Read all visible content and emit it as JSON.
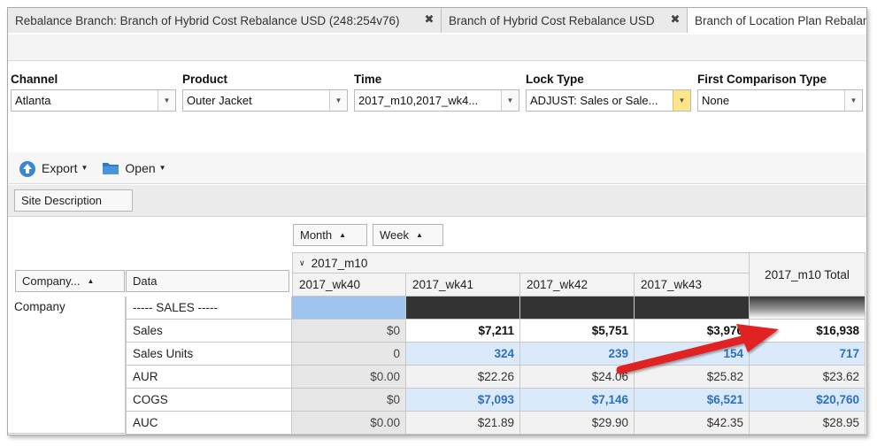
{
  "tabs": [
    {
      "label": "Rebalance Branch: Branch of Hybrid Cost Rebalance USD (248:254v76)",
      "close": "✖"
    },
    {
      "label": "Branch of Hybrid Cost Rebalance USD",
      "close": "✖"
    },
    {
      "label": "Branch of Location Plan Rebalance"
    }
  ],
  "filters": {
    "channel": {
      "label": "Channel",
      "value": "Atlanta"
    },
    "product": {
      "label": "Product",
      "value": "Outer Jacket"
    },
    "time": {
      "label": "Time",
      "value": "2017_m10,2017_wk4..."
    },
    "lock_type": {
      "label": "Lock Type",
      "value": "ADJUST: Sales or Sale..."
    },
    "first_comparison": {
      "label": "First Comparison Type",
      "value": "None"
    }
  },
  "actions": {
    "export": "Export",
    "open": "Open"
  },
  "grouping": {
    "site_description": "Site Description",
    "month": "Month",
    "week": "Week"
  },
  "grid": {
    "company_header": "Company...",
    "data_header": "Data",
    "month_group": "2017_m10",
    "columns": [
      "2017_wk40",
      "2017_wk41",
      "2017_wk42",
      "2017_wk43"
    ],
    "total_header": "2017_m10 Total",
    "company_value": "Company",
    "rows": [
      {
        "label": "----- SALES -----",
        "values": [
          "",
          "",
          "",
          "",
          ""
        ]
      },
      {
        "label": "Sales",
        "values": [
          "$0",
          "$7,211",
          "$5,751",
          "$3,976",
          "$16,938"
        ]
      },
      {
        "label": "Sales Units",
        "values": [
          "0",
          "324",
          "239",
          "154",
          "717"
        ]
      },
      {
        "label": "AUR",
        "values": [
          "$0.00",
          "$22.26",
          "$24.06",
          "$25.82",
          "$23.62"
        ]
      },
      {
        "label": "COGS",
        "values": [
          "$0",
          "$7,093",
          "$7,146",
          "$6,521",
          "$20,760"
        ]
      },
      {
        "label": "AUC",
        "values": [
          "$0.00",
          "$21.89",
          "$29.90",
          "$42.35",
          "$28.95"
        ]
      }
    ]
  },
  "colors": {
    "accent_blue": "#2d6fbf",
    "highlight": "#dbeafb",
    "arrow": "#e02020"
  }
}
